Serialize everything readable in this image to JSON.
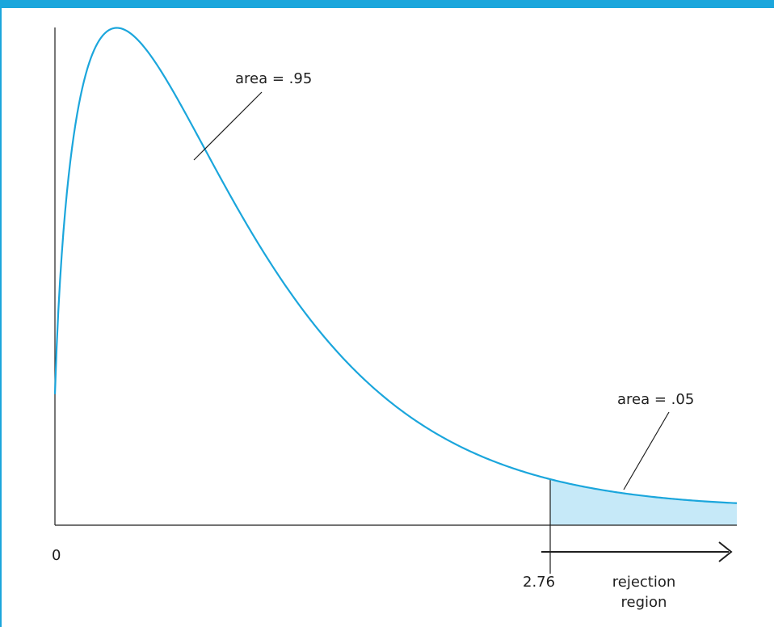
{
  "chart_data": {
    "type": "area",
    "distribution": "F density curve with right-tail rejection region",
    "xlim": [
      0,
      3.8
    ],
    "critical_value": 2.76,
    "ticks": [
      {
        "value": 0,
        "label": "0"
      },
      {
        "value": 2.76,
        "label": "2.76"
      }
    ],
    "annotations": {
      "acceptance_area": "area = .95",
      "rejection_area": "area = .05",
      "region_line1": "rejection",
      "region_line2": "region"
    },
    "colors": {
      "curve": "#1ba6dc",
      "rejection_fill": "#c6e9f8",
      "axis": "#1f1f1f",
      "accent_bar": "#1ba6dc"
    },
    "grid": false
  }
}
